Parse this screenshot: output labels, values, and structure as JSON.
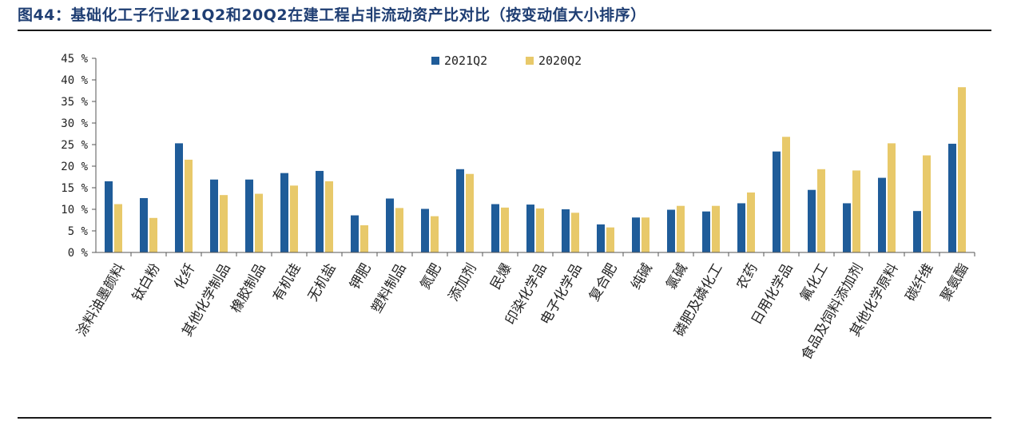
{
  "header": {
    "title": "图44：基础化工子行业21Q2和20Q2在建工程占非流动资产比对比（按变动值大小排序）"
  },
  "colors": {
    "series_2021": "#1f5c99",
    "series_2020": "#e8c96a",
    "title": "#1f3e73"
  },
  "chart_data": {
    "type": "bar",
    "title": "",
    "xlabel": "",
    "ylabel": "",
    "ylim": [
      0,
      45
    ],
    "yticks": [
      0,
      5,
      10,
      15,
      20,
      25,
      30,
      35,
      40,
      45
    ],
    "ytick_labels": [
      "0 %",
      "5 %",
      "10 %",
      "15 %",
      "20 %",
      "25 %",
      "30 %",
      "35 %",
      "40 %",
      "45 %"
    ],
    "grid": false,
    "legend_position": "top-center",
    "categories": [
      "涂料油墨颜料",
      "钛白粉",
      "化纤",
      "其他化学制品",
      "橡胶制品",
      "有机硅",
      "无机盐",
      "钾肥",
      "塑料制品",
      "氮肥",
      "添加剂",
      "民爆",
      "印染化学品",
      "电子化学品",
      "复合肥",
      "纯碱",
      "氯碱",
      "磷肥及磷化工",
      "农药",
      "日用化学品",
      "氟化工",
      "食品及饲料添加剂",
      "其他化学原料",
      "碳纤维",
      "聚氨酯"
    ],
    "series": [
      {
        "name": "2021Q2",
        "values": [
          16.5,
          12.6,
          25.3,
          16.9,
          16.9,
          18.4,
          18.9,
          8.6,
          12.5,
          10.1,
          19.3,
          11.2,
          11.1,
          10.0,
          6.5,
          8.1,
          9.9,
          9.5,
          11.4,
          23.4,
          14.5,
          11.4,
          17.3,
          9.6,
          25.2
        ]
      },
      {
        "name": "2020Q2",
        "values": [
          11.2,
          8.0,
          21.5,
          13.3,
          13.6,
          15.5,
          16.5,
          6.3,
          10.3,
          8.4,
          18.2,
          10.4,
          10.2,
          9.2,
          5.8,
          8.1,
          10.8,
          10.8,
          13.9,
          26.8,
          19.3,
          19.0,
          25.3,
          22.5,
          38.3
        ]
      }
    ]
  }
}
